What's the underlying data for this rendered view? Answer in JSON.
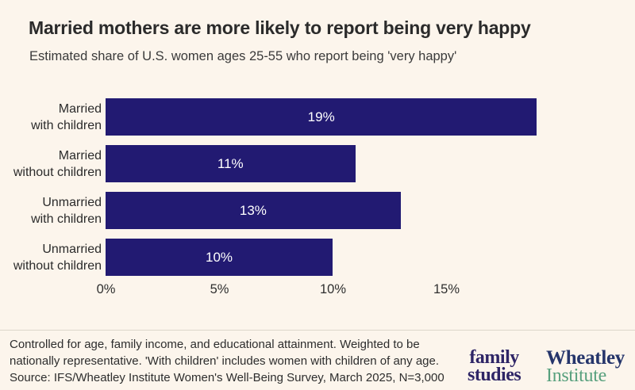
{
  "header": {
    "title": "Married mothers are more likely to report being very happy",
    "subtitle": "Estimated share of U.S. women ages 25-55 who report being 'very happy'"
  },
  "chart_data": {
    "type": "bar",
    "orientation": "horizontal",
    "title": "Married mothers are more likely to report being very happy",
    "subtitle": "Estimated share of U.S. women ages 25-55 who report being 'very happy'",
    "categories": [
      "Married with children",
      "Married without children",
      "Unmarried with children",
      "Unmarried without children"
    ],
    "category_lines": [
      [
        "Married",
        "with children"
      ],
      [
        "Married",
        "without children"
      ],
      [
        "Unmarried",
        "with children"
      ],
      [
        "Unmarried",
        "without children"
      ]
    ],
    "values": [
      19,
      11,
      13,
      10
    ],
    "value_labels": [
      "19%",
      "11%",
      "13%",
      "10%"
    ],
    "unit": "%",
    "x_ticks": [
      {
        "value": 0,
        "label": "0%"
      },
      {
        "value": 5,
        "label": "5%"
      },
      {
        "value": 10,
        "label": "10%"
      },
      {
        "value": 15,
        "label": "15%"
      }
    ],
    "xlim": [
      0,
      22.3
    ],
    "grid": false,
    "legend": false,
    "value_labels_inside_bars": true
  },
  "footer": {
    "note_lines": [
      "Controlled for age, family income, and educational attainment. Weighted to be",
      "nationally representative. 'With children' includes women with children of any age.",
      "Source: IFS/Wheatley Institute Women's Well-Being Survey, March 2025, N=3,000"
    ],
    "logos": {
      "family_studies": {
        "line1": "family",
        "line2": "studies"
      },
      "wheatley": {
        "line1": "Wheatley",
        "line2": "Institute"
      }
    }
  },
  "colors": {
    "background": "#fcf5ec",
    "bar": "#221a72",
    "value_label": "#ffffff",
    "divider": "#dcd6cb",
    "family_studies_logo": "#2e2566",
    "wheatley_navy": "#25356b",
    "wheatley_green": "#57a07d"
  }
}
